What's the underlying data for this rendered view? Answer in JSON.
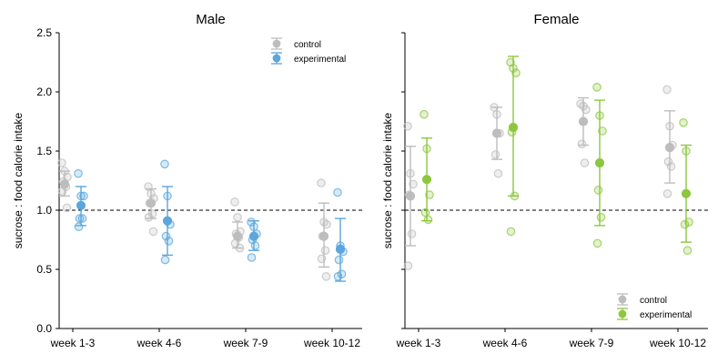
{
  "chart_data": {
    "type": "scatter",
    "ylabel": "sucrose : food calorie intake",
    "ylim": [
      0,
      2.5
    ],
    "yticks": [
      0.0,
      0.5,
      1.0,
      1.5,
      2.0,
      2.5
    ],
    "ytick_labels": [
      "0.0",
      "0.5",
      "1.0",
      "1.5",
      "2.0",
      "2.5"
    ],
    "categories": [
      "week 1-3",
      "week 4-6",
      "week 7-9",
      "week 10-12"
    ],
    "reference_line": 1.0,
    "legend_labels": [
      "control",
      "experimental"
    ],
    "panels": [
      {
        "title": "Male",
        "legend_position": "top-right",
        "series": [
          {
            "name": "control",
            "color": "#bdbdbd",
            "mean": [
              1.22,
              1.06,
              0.78,
              0.78
            ],
            "err_low": [
              1.12,
              0.93,
              0.68,
              0.52
            ],
            "err_high": [
              1.33,
              1.18,
              0.9,
              1.06
            ],
            "points": [
              [
                1.4,
                1.33,
                1.28,
                1.24,
                1.2,
                1.16,
                1.02
              ],
              [
                1.2,
                1.14,
                1.1,
                1.06,
                0.97,
                0.94,
                0.82
              ],
              [
                1.07,
                0.94,
                0.82,
                0.8,
                0.77,
                0.72,
                0.68
              ],
              [
                1.23,
                0.9,
                0.88,
                0.78,
                0.66,
                0.59,
                0.44
              ]
            ]
          },
          {
            "name": "experimental",
            "color": "#5ba6dc",
            "mean": [
              1.04,
              0.91,
              0.78,
              0.67
            ],
            "err_low": [
              0.87,
              0.62,
              0.66,
              0.4
            ],
            "err_high": [
              1.2,
              1.2,
              0.91,
              0.93
            ],
            "points": [
              [
                1.31,
                1.12,
                1.12,
                0.93,
                0.93,
                0.86
              ],
              [
                1.39,
                1.12,
                0.88,
                0.78,
                0.74,
                0.58
              ],
              [
                0.9,
                0.86,
                0.8,
                0.75,
                0.7,
                0.6
              ],
              [
                1.15,
                0.7,
                0.65,
                0.58,
                0.46,
                0.44
              ]
            ]
          }
        ]
      },
      {
        "title": "Female",
        "legend_position": "bottom-right",
        "series": [
          {
            "name": "control",
            "color": "#bdbdbd",
            "mean": [
              1.12,
              1.65,
              1.75,
              1.53
            ],
            "err_low": [
              0.7,
              1.43,
              1.55,
              1.23
            ],
            "err_high": [
              1.54,
              1.87,
              1.95,
              1.84
            ],
            "points": [
              [
                1.71,
                1.31,
                1.22,
                1.13,
                0.8,
                0.53
              ],
              [
                1.87,
                1.81,
                1.65,
                1.47,
                1.31
              ],
              [
                1.9,
                1.88,
                1.85,
                1.56,
                1.4
              ],
              [
                2.02,
                1.71,
                1.55,
                1.41,
                1.37,
                1.14
              ]
            ]
          },
          {
            "name": "experimental",
            "color": "#8dc63f",
            "mean": [
              1.26,
              1.7,
              1.4,
              1.14
            ],
            "err_low": [
              0.91,
              1.12,
              0.87,
              0.73
            ],
            "err_high": [
              1.61,
              2.3,
              1.93,
              1.55
            ],
            "points": [
              [
                1.81,
                1.52,
                1.13,
                0.98,
                0.92
              ],
              [
                2.25,
                2.2,
                2.16,
                1.66,
                1.12,
                0.82
              ],
              [
                2.04,
                1.8,
                1.67,
                1.17,
                0.94,
                0.72
              ],
              [
                1.74,
                1.5,
                0.9,
                0.88,
                0.66
              ]
            ]
          }
        ]
      }
    ]
  }
}
